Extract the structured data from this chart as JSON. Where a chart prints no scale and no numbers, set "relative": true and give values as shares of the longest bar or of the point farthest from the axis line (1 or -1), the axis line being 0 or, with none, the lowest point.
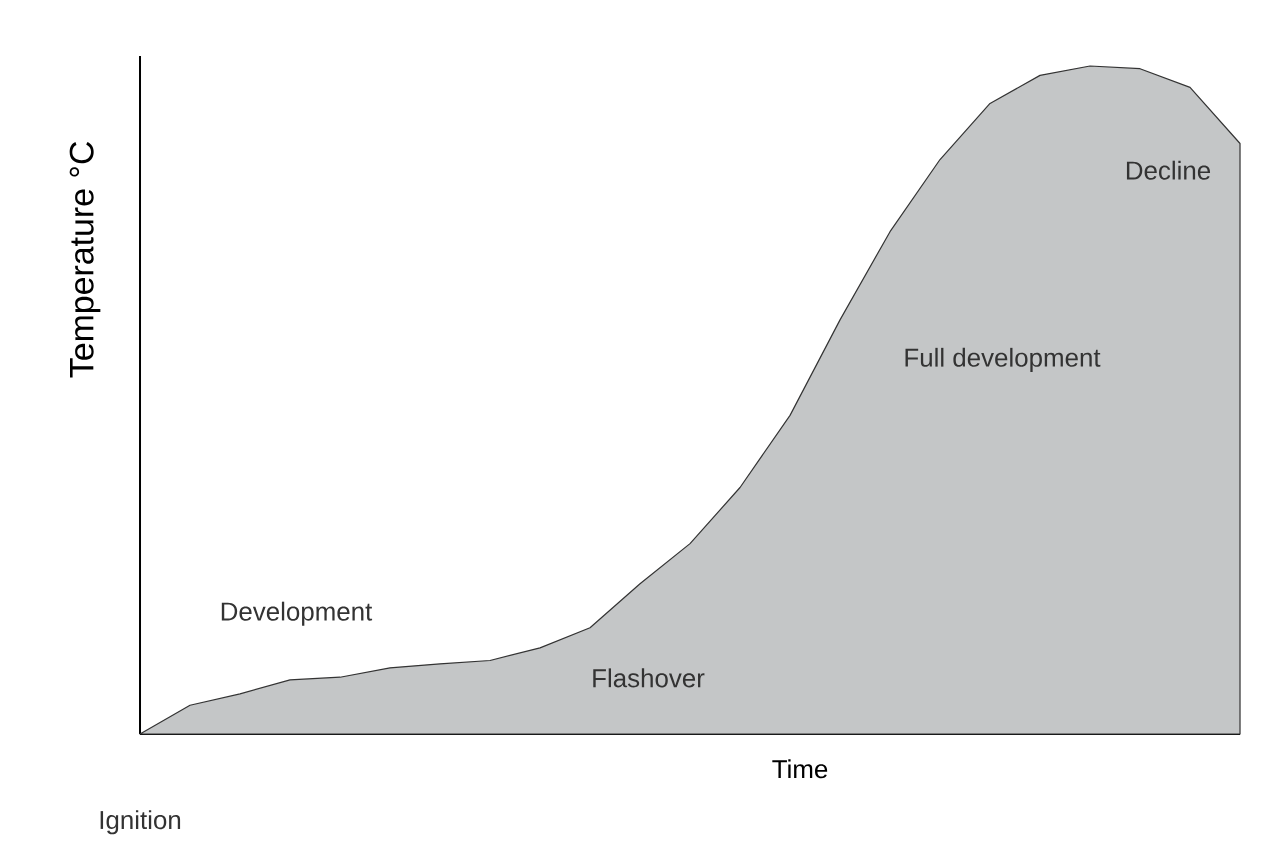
{
  "chart_data": {
    "type": "area",
    "relative": true,
    "xlabel": "Time",
    "ylabel": "Temperature °C",
    "color": "#c4c6c7",
    "categories": [
      null,
      null,
      null,
      null,
      null,
      null,
      null,
      null,
      null,
      null,
      null,
      null,
      null,
      null,
      null,
      null,
      null,
      null,
      null,
      null,
      null,
      null,
      null
    ],
    "values": [
      0,
      0.043,
      0.06,
      0.081,
      0.085,
      0.099,
      0.105,
      0.11,
      0.129,
      0.159,
      0.225,
      0.285,
      0.369,
      0.477,
      0.62,
      0.752,
      0.86,
      0.944,
      0.986,
      1,
      0.996,
      0.968,
      0.884
    ],
    "annotations": [
      "Development",
      "Flashover",
      "Full development",
      "Decline",
      "Ignition"
    ]
  }
}
